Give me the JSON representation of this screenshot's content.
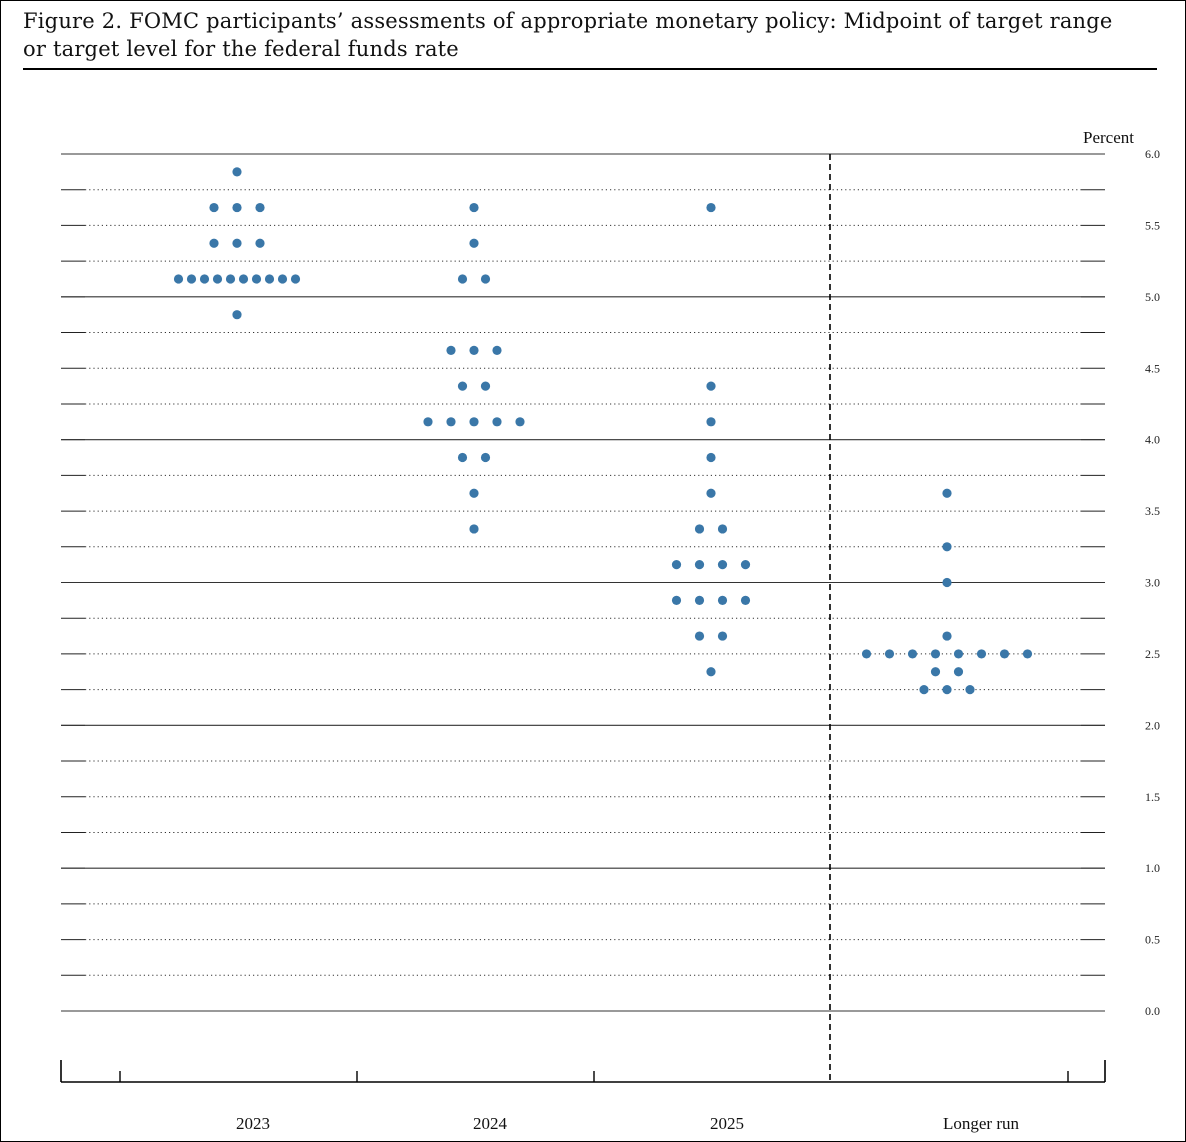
{
  "caption": {
    "line1": "Figure 2.  FOMC participants’ assessments of appropriate monetary policy:  Midpoint of target range",
    "line2": "or target level for the federal funds rate"
  },
  "chart_data": {
    "type": "scatter",
    "subtype": "dot-plot",
    "unit_label": "Percent",
    "ylim": [
      0.0,
      6.0
    ],
    "y_tick_step": 0.25,
    "y_labels": [
      "6.0",
      "5.5",
      "5.0",
      "4.5",
      "4.0",
      "3.5",
      "3.0",
      "2.5",
      "2.0",
      "1.5",
      "1.0",
      "0.5",
      "0.0"
    ],
    "grid": "dotted at 0.25, solid at whole numbers",
    "divider": "dashed vertical line before Longer run",
    "dot_color": "#3a77a8",
    "categories": [
      "2023",
      "2024",
      "2025",
      "Longer run"
    ],
    "series": [
      {
        "category": "2023",
        "counts": [
          {
            "y": 5.875,
            "n": 1
          },
          {
            "y": 5.625,
            "n": 3
          },
          {
            "y": 5.375,
            "n": 3
          },
          {
            "y": 5.125,
            "n": 10
          },
          {
            "y": 4.875,
            "n": 1
          }
        ]
      },
      {
        "category": "2024",
        "counts": [
          {
            "y": 5.625,
            "n": 1
          },
          {
            "y": 5.375,
            "n": 1
          },
          {
            "y": 5.125,
            "n": 2
          },
          {
            "y": 4.625,
            "n": 3
          },
          {
            "y": 4.375,
            "n": 2
          },
          {
            "y": 4.125,
            "n": 5
          },
          {
            "y": 3.875,
            "n": 2
          },
          {
            "y": 3.625,
            "n": 1
          },
          {
            "y": 3.375,
            "n": 1
          }
        ]
      },
      {
        "category": "2025",
        "counts": [
          {
            "y": 5.625,
            "n": 1
          },
          {
            "y": 4.375,
            "n": 1
          },
          {
            "y": 4.125,
            "n": 1
          },
          {
            "y": 3.875,
            "n": 1
          },
          {
            "y": 3.625,
            "n": 1
          },
          {
            "y": 3.375,
            "n": 2
          },
          {
            "y": 3.125,
            "n": 4
          },
          {
            "y": 2.875,
            "n": 4
          },
          {
            "y": 2.625,
            "n": 2
          },
          {
            "y": 2.375,
            "n": 1
          }
        ]
      },
      {
        "category": "Longer run",
        "counts": [
          {
            "y": 3.625,
            "n": 1
          },
          {
            "y": 3.25,
            "n": 1
          },
          {
            "y": 3.0,
            "n": 1
          },
          {
            "y": 2.625,
            "n": 1
          },
          {
            "y": 2.5,
            "n": 8
          },
          {
            "y": 2.375,
            "n": 2
          },
          {
            "y": 2.25,
            "n": 3
          }
        ]
      }
    ]
  }
}
